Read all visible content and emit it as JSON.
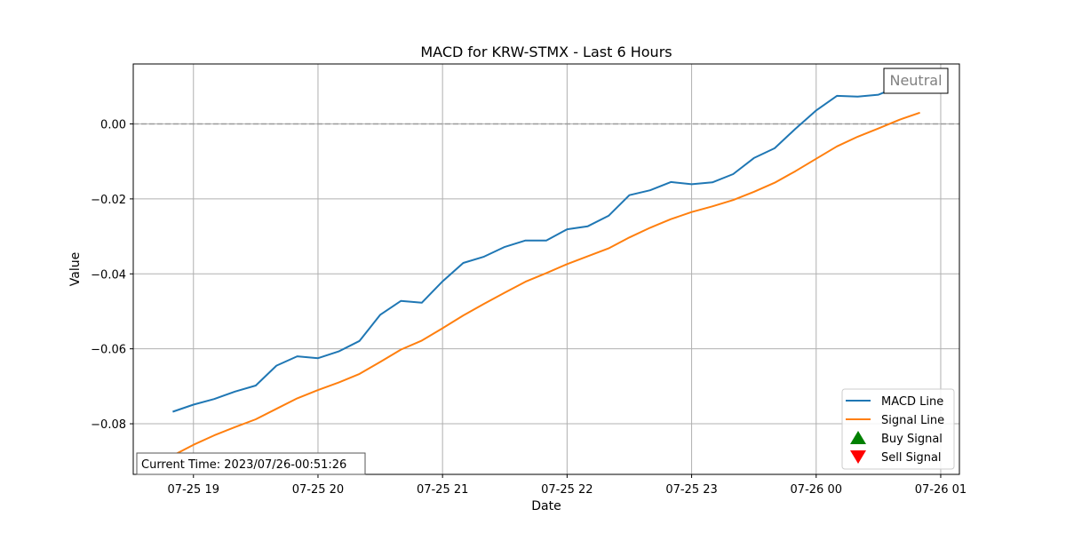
{
  "chart_data": {
    "type": "line",
    "title": "MACD for KRW-STMX - Last 6 Hours",
    "xlabel": "Date",
    "ylabel": "Value",
    "x_tick_labels": [
      "07-25 19",
      "07-25 20",
      "07-25 21",
      "07-25 22",
      "07-25 23",
      "07-26 00",
      "07-26 01"
    ],
    "y_tick_labels": [
      "0.00",
      "−0.02",
      "−0.04",
      "−0.06",
      "−0.08"
    ],
    "xlim": [
      "2023-07-25 18:31",
      "2023-07-26 01:09"
    ],
    "ylim": [
      -0.0935,
      0.016
    ],
    "grid": true,
    "reference_line": {
      "y": 0.0,
      "style": "dashed",
      "color": "#999999"
    },
    "legend_location": "lower-right",
    "signal_annotation": "Neutral",
    "current_time_label": "Current Time: 2023/07/26-00:51:26",
    "x": [
      "2023-07-25 18:50",
      "2023-07-25 19:00",
      "2023-07-25 19:10",
      "2023-07-25 19:20",
      "2023-07-25 19:30",
      "2023-07-25 19:40",
      "2023-07-25 19:50",
      "2023-07-25 20:00",
      "2023-07-25 20:10",
      "2023-07-25 20:20",
      "2023-07-25 20:30",
      "2023-07-25 20:40",
      "2023-07-25 20:50",
      "2023-07-25 21:00",
      "2023-07-25 21:10",
      "2023-07-25 21:20",
      "2023-07-25 21:30",
      "2023-07-25 21:40",
      "2023-07-25 21:50",
      "2023-07-25 22:00",
      "2023-07-25 22:10",
      "2023-07-25 22:20",
      "2023-07-25 22:30",
      "2023-07-25 22:40",
      "2023-07-25 22:50",
      "2023-07-25 23:00",
      "2023-07-25 23:10",
      "2023-07-25 23:20",
      "2023-07-25 23:30",
      "2023-07-25 23:40",
      "2023-07-25 23:50",
      "2023-07-26 00:00",
      "2023-07-26 00:10",
      "2023-07-26 00:20",
      "2023-07-26 00:30",
      "2023-07-26 00:40",
      "2023-07-26 00:50"
    ],
    "series": [
      {
        "name": "MACD Line",
        "color": "#1f77b4",
        "values": [
          -0.0768,
          -0.0749,
          -0.0734,
          -0.0714,
          -0.0698,
          -0.0645,
          -0.062,
          -0.0625,
          -0.0607,
          -0.0579,
          -0.0509,
          -0.0472,
          -0.0477,
          -0.042,
          -0.0371,
          -0.0354,
          -0.0328,
          -0.0311,
          -0.0311,
          -0.0281,
          -0.0273,
          -0.0245,
          -0.019,
          -0.0177,
          -0.0155,
          -0.0161,
          -0.0156,
          -0.0134,
          -0.0091,
          -0.0065,
          -0.0013,
          0.0036,
          0.0075,
          0.0073,
          0.0078,
          0.01,
          0.0125
        ]
      },
      {
        "name": "Signal Line",
        "color": "#ff7f0e",
        "values": [
          -0.0885,
          -0.0856,
          -0.0831,
          -0.0809,
          -0.0788,
          -0.076,
          -0.0732,
          -0.071,
          -0.069,
          -0.0667,
          -0.0635,
          -0.0602,
          -0.0578,
          -0.0545,
          -0.0511,
          -0.048,
          -0.045,
          -0.0421,
          -0.0398,
          -0.0374,
          -0.0353,
          -0.0332,
          -0.0303,
          -0.0277,
          -0.0254,
          -0.0235,
          -0.022,
          -0.0203,
          -0.0181,
          -0.0157,
          -0.0126,
          -0.0093,
          -0.006,
          -0.0034,
          -0.0012,
          0.0011,
          0.003
        ]
      }
    ],
    "legend": [
      {
        "label": "MACD Line",
        "marker": "line",
        "color": "#1f77b4"
      },
      {
        "label": "Signal Line",
        "marker": "line",
        "color": "#ff7f0e"
      },
      {
        "label": "Buy Signal",
        "marker": "triangle-up",
        "color": "#008000"
      },
      {
        "label": "Sell Signal",
        "marker": "triangle-down",
        "color": "#ff0000"
      }
    ]
  }
}
